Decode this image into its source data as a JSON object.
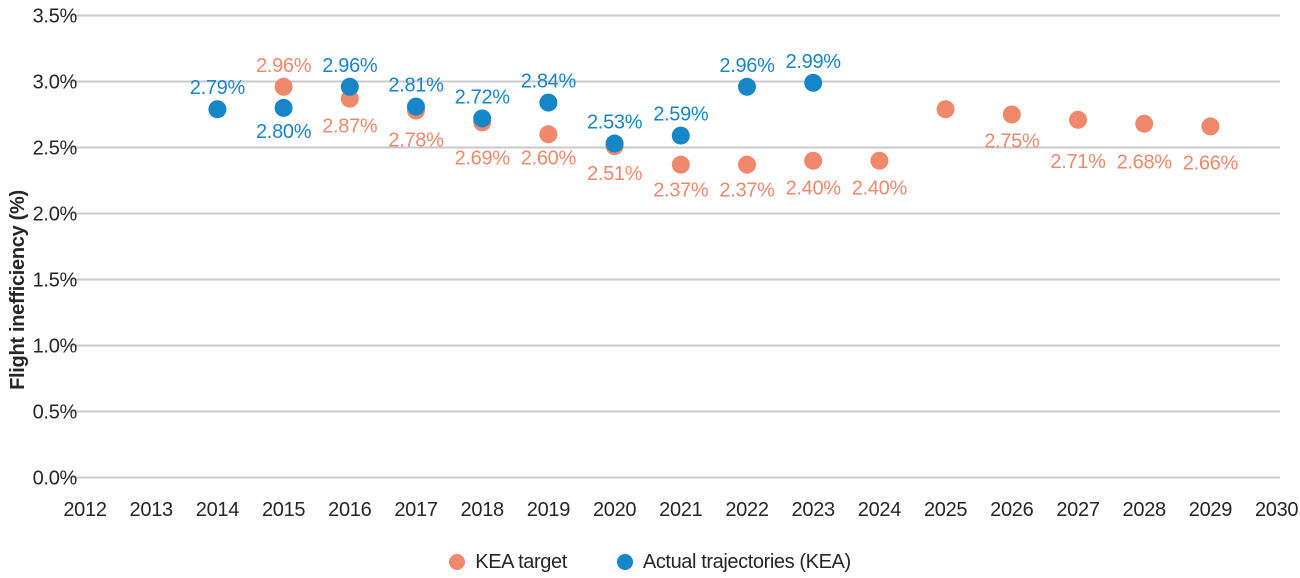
{
  "chart_data": {
    "type": "scatter",
    "title": "",
    "ylabel": "Flight inefficiency (%)",
    "x_axis": {
      "ticks": [
        "2012",
        "2013",
        "2014",
        "2015",
        "2016",
        "2017",
        "2018",
        "2019",
        "2020",
        "2021",
        "2022",
        "2023",
        "2024",
        "2025",
        "2026",
        "2027",
        "2028",
        "2029",
        "2030"
      ]
    },
    "y_axis": {
      "ticks": [
        "0.0%",
        "0.5%",
        "1.0%",
        "1.5%",
        "2.0%",
        "2.5%",
        "3.0%",
        "3.5%"
      ],
      "min": 0,
      "max": 3.5,
      "step": 0.5,
      "grid": true
    },
    "legend_position": "bottom",
    "colors": {
      "kea_target": "#f0886c",
      "actual": "#1786c9",
      "gridline": "#c9c9c9",
      "axis_text": "#262626"
    },
    "series": [
      {
        "name": "KEA target",
        "color": "#f0886c",
        "points": [
          {
            "year": 2015,
            "value": 2.96,
            "label": "2.96%",
            "label_pos": "above"
          },
          {
            "year": 2016,
            "value": 2.87,
            "label": "2.87%",
            "label_pos": "below",
            "label_dy": 4
          },
          {
            "year": 2017,
            "value": 2.78,
            "label": "2.78%",
            "label_pos": "below",
            "label_dy": 6
          },
          {
            "year": 2018,
            "value": 2.69,
            "label": "2.69%",
            "label_pos": "below",
            "label_dy": 12
          },
          {
            "year": 2019,
            "value": 2.6,
            "label": "2.60%",
            "label_pos": "below"
          },
          {
            "year": 2020,
            "value": 2.51,
            "label": "2.51%",
            "label_pos": "below",
            "label_dy": 4
          },
          {
            "year": 2021,
            "value": 2.37,
            "label": "2.37%",
            "label_pos": "below",
            "label_dy": 2
          },
          {
            "year": 2022,
            "value": 2.37,
            "label": "2.37%",
            "label_pos": "below",
            "label_dy": 2
          },
          {
            "year": 2023,
            "value": 2.4,
            "label": "2.40%",
            "label_pos": "below",
            "label_dy": 4
          },
          {
            "year": 2024,
            "value": 2.4,
            "label": "2.40%",
            "label_pos": "below",
            "label_dy": 4
          },
          {
            "year": 2025,
            "value": 2.79,
            "label": "",
            "label_pos": "below"
          },
          {
            "year": 2026,
            "value": 2.75,
            "label": "2.75%",
            "label_pos": "below",
            "label_dy": 3
          },
          {
            "year": 2027,
            "value": 2.71,
            "label": "2.71%",
            "label_pos": "below",
            "label_dy": 18
          },
          {
            "year": 2028,
            "value": 2.68,
            "label": "2.68%",
            "label_pos": "below",
            "label_dy": 15
          },
          {
            "year": 2029,
            "value": 2.66,
            "label": "2.66%",
            "label_pos": "below",
            "label_dy": 13
          }
        ]
      },
      {
        "name": "Actual trajectories (KEA)",
        "color": "#1786c9",
        "points": [
          {
            "year": 2014,
            "value": 2.79,
            "label": "2.79%",
            "label_pos": "above"
          },
          {
            "year": 2015,
            "value": 2.8,
            "label": "2.80%",
            "label_pos": "below"
          },
          {
            "year": 2016,
            "value": 2.96,
            "label": "2.96%",
            "label_pos": "above"
          },
          {
            "year": 2017,
            "value": 2.81,
            "label": "2.81%",
            "label_pos": "above"
          },
          {
            "year": 2018,
            "value": 2.72,
            "label": "2.72%",
            "label_pos": "above"
          },
          {
            "year": 2019,
            "value": 2.84,
            "label": "2.84%",
            "label_pos": "above"
          },
          {
            "year": 2020,
            "value": 2.53,
            "label": "2.53%",
            "label_pos": "above"
          },
          {
            "year": 2021,
            "value": 2.59,
            "label": "2.59%",
            "label_pos": "above"
          },
          {
            "year": 2022,
            "value": 2.96,
            "label": "2.96%",
            "label_pos": "above"
          },
          {
            "year": 2023,
            "value": 2.99,
            "label": "2.99%",
            "label_pos": "above"
          }
        ]
      }
    ]
  }
}
